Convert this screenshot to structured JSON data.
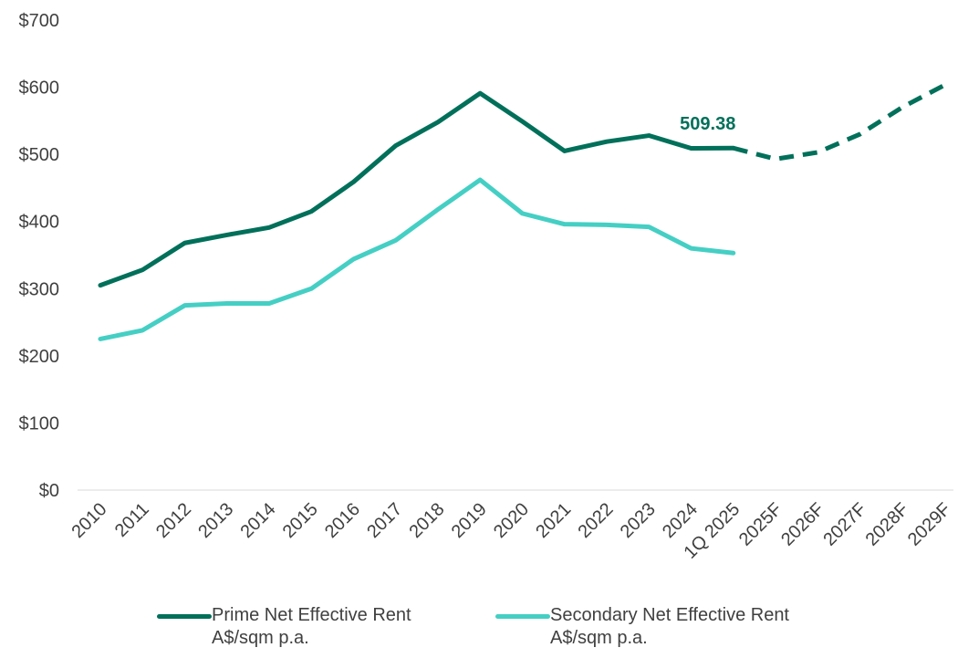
{
  "chart_data": {
    "type": "line",
    "categories": [
      "2010",
      "2011",
      "2012",
      "2013",
      "2014",
      "2015",
      "2016",
      "2017",
      "2018",
      "2019",
      "2020",
      "2021",
      "2022",
      "2023",
      "2024",
      "1Q 2025",
      "2025F",
      "2026F",
      "2027F",
      "2028F",
      "2029F"
    ],
    "ylim": [
      0,
      700
    ],
    "yticks": [
      0,
      100,
      200,
      300,
      400,
      500,
      600,
      700
    ],
    "ytick_labels": [
      "$0",
      "$100",
      "$200",
      "$300",
      "$400",
      "$500",
      "$600",
      "$700"
    ],
    "grid": false,
    "legend_position": "bottom",
    "series": [
      {
        "name": "Prime Net Effective Rent",
        "name_line2": "A$/sqm p.a.",
        "color": "#00705a",
        "values": [
          305,
          328,
          368,
          380,
          391,
          415,
          459,
          513,
          548,
          591,
          549,
          505,
          519,
          528,
          509,
          509.38,
          null,
          null,
          null,
          null,
          null
        ]
      },
      {
        "name": "",
        "color": "#00705a",
        "style": "dashed",
        "values": [
          null,
          null,
          null,
          null,
          null,
          null,
          null,
          null,
          null,
          null,
          null,
          null,
          null,
          null,
          null,
          509.38,
          493,
          503,
          530,
          570,
          603
        ]
      },
      {
        "name": "Secondary Net Effective Rent",
        "name_line2": "A$/sqm p.a.",
        "color": "#45cfc4",
        "values": [
          225,
          238,
          275,
          278,
          278,
          300,
          344,
          372,
          418,
          462,
          412,
          396,
          395,
          392,
          360,
          353,
          null,
          null,
          null,
          null,
          null
        ]
      }
    ],
    "annotations": [
      {
        "text": "509.38",
        "category": "1Q 2025",
        "value": 509.38,
        "color": "#00705a"
      }
    ]
  }
}
